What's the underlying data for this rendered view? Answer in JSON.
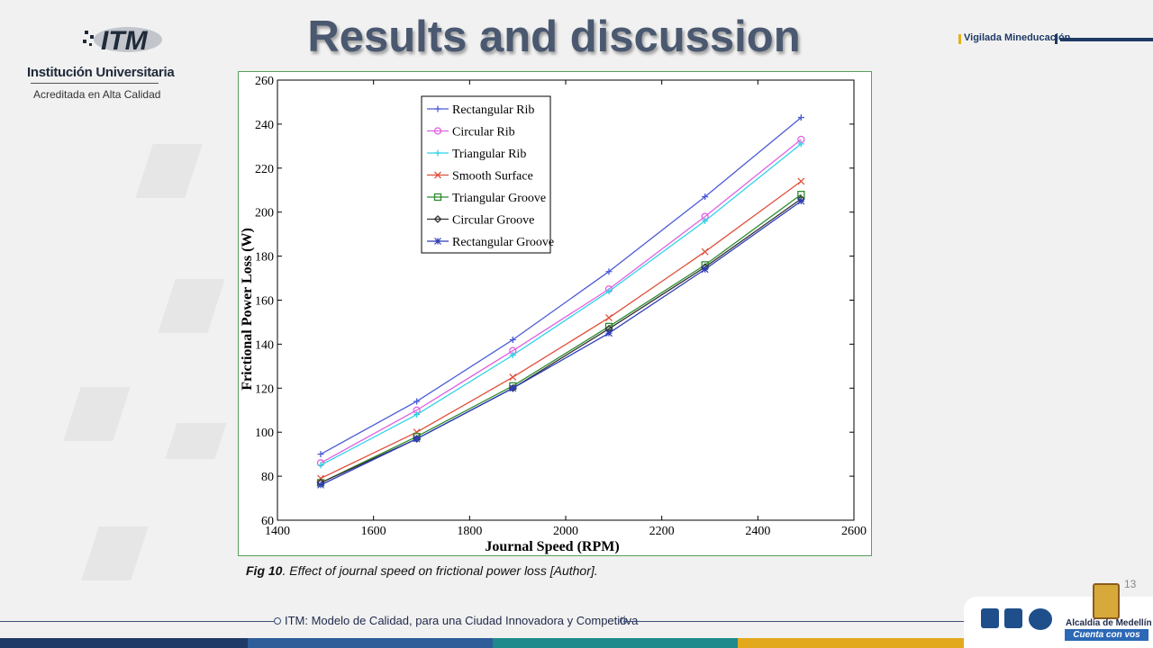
{
  "header": {
    "title": "Results and discussion",
    "logo": {
      "brand": "ITM",
      "name": "Institución Universitaria",
      "tagline": "Acreditada en Alta Calidad"
    },
    "vigilada": "Vigilada Mineducación"
  },
  "figure": {
    "caption_bold": "Fig 10",
    "caption_rest": ". Effect of journal speed on frictional power loss [Author]."
  },
  "page_number": "13",
  "footer": {
    "text": "ITM: Modelo de Calidad, para una Ciudad Innovadora y Competitiva",
    "alcaldia": "Alcaldía de Medellín",
    "alcaldia_tag": "Cuenta con vos",
    "bar_colors": [
      "#1f3a66",
      "#2f5d9a",
      "#1e8a8c",
      "#e3a91d"
    ]
  },
  "chart_data": {
    "type": "line",
    "title": "",
    "xlabel": "Journal Speed (RPM)",
    "ylabel": "Frictional Power Loss (W)",
    "xlim": [
      1400,
      2600
    ],
    "ylim": [
      60,
      260
    ],
    "xticks": [
      1400,
      1600,
      1800,
      2000,
      2200,
      2400,
      2600
    ],
    "yticks": [
      60,
      80,
      100,
      120,
      140,
      160,
      180,
      200,
      220,
      240,
      260
    ],
    "grid": false,
    "legend_position": "top-left",
    "x": [
      1490,
      1690,
      1890,
      2090,
      2290,
      2490
    ],
    "series": [
      {
        "name": "Rectangular Rib",
        "color": "#4a5bd6",
        "marker": "plus",
        "values": [
          90,
          114,
          142,
          173,
          207,
          243
        ]
      },
      {
        "name": "Circular Rib",
        "color": "#e060e0",
        "marker": "circle",
        "values": [
          86,
          110,
          137,
          165,
          198,
          233
        ]
      },
      {
        "name": "Triangular Rib",
        "color": "#2fd3e6",
        "marker": "plus",
        "values": [
          85,
          108,
          135,
          164,
          196,
          231
        ]
      },
      {
        "name": "Smooth Surface",
        "color": "#e0503c",
        "marker": "x",
        "values": [
          79,
          100,
          125,
          152,
          182,
          214
        ]
      },
      {
        "name": "Triangular Groove",
        "color": "#2e8b2e",
        "marker": "square",
        "values": [
          77,
          98,
          121,
          148,
          176,
          208
        ]
      },
      {
        "name": "Circular Groove",
        "color": "#333333",
        "marker": "diamond",
        "values": [
          77,
          97,
          120,
          147,
          175,
          206
        ]
      },
      {
        "name": "Rectangular Groove",
        "color": "#2f3db8",
        "marker": "star",
        "values": [
          76,
          97,
          120,
          145,
          174,
          205
        ]
      }
    ]
  }
}
